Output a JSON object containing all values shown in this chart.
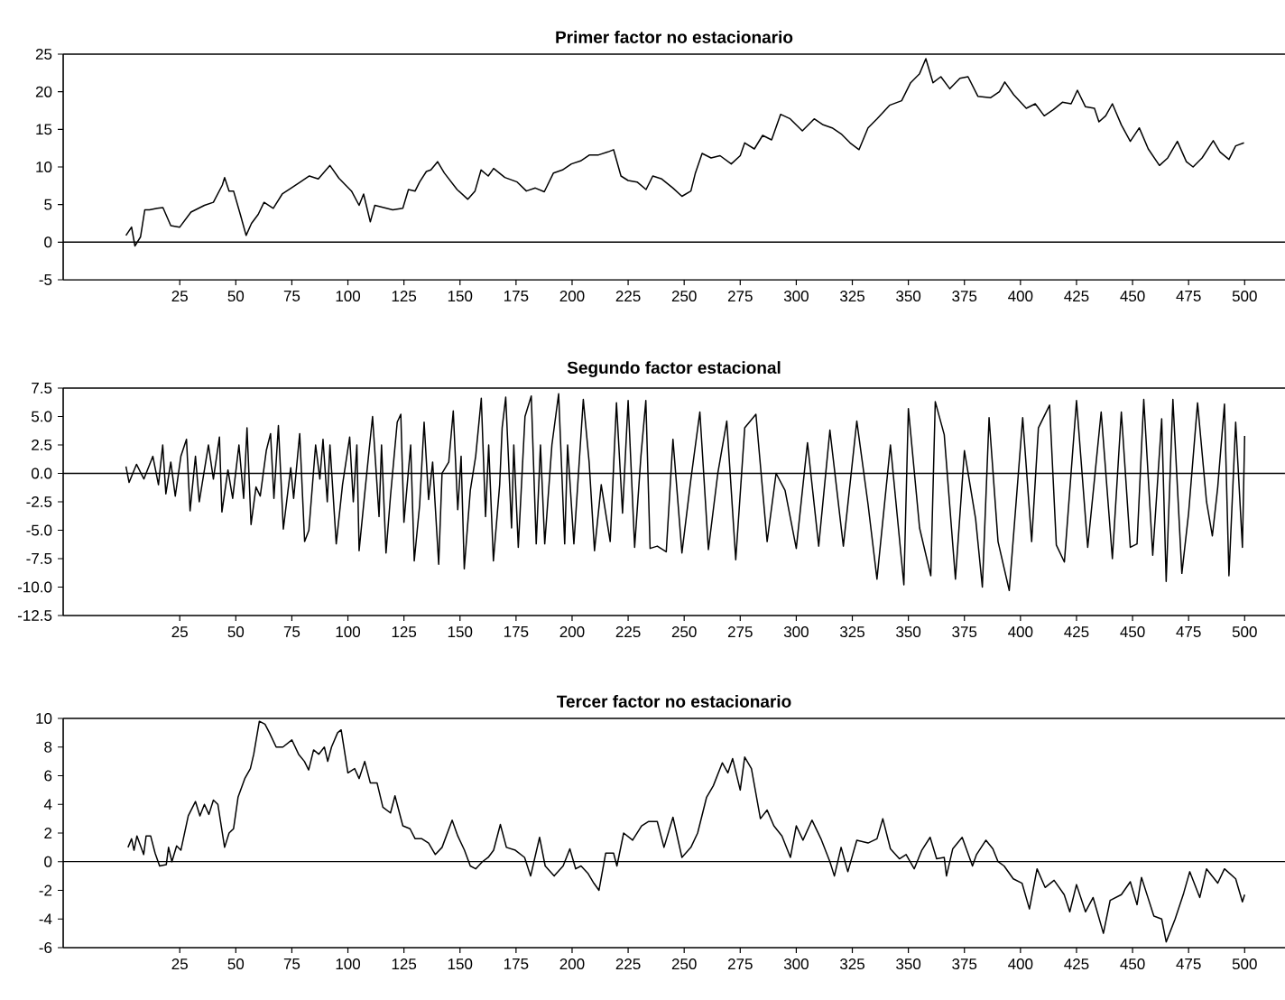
{
  "chart_data": [
    {
      "type": "line",
      "title": "Primer factor no estacionario",
      "color": "#000000",
      "xlim": [
        -27,
        518
      ],
      "xticks": [
        25,
        50,
        75,
        100,
        125,
        150,
        175,
        200,
        225,
        250,
        275,
        300,
        325,
        350,
        375,
        400,
        425,
        450,
        475,
        500
      ],
      "ylim": [
        -5,
        25
      ],
      "yticks": [
        -5,
        0,
        5,
        10,
        15,
        20,
        25
      ],
      "ref_lines": [
        {
          "axis": "y",
          "value": 0
        }
      ],
      "x": [
        1,
        3.5,
        5,
        7.5,
        9.4,
        11.5,
        15,
        17.5,
        21,
        25,
        30,
        36,
        40,
        44,
        45,
        47,
        49,
        52,
        54.6,
        57,
        60,
        62.6,
        66.7,
        70.7,
        74.7,
        78.8,
        82.8,
        86.8,
        92,
        96,
        101.6,
        105,
        107,
        110,
        112,
        116,
        120,
        124.5,
        127,
        130,
        132,
        135,
        137,
        140,
        143,
        148.7,
        153.5,
        156.7,
        159.4,
        162.6,
        165,
        170,
        175.5,
        179.6,
        183.6,
        187.6,
        191.7,
        195.7,
        199.7,
        203.8,
        207.8,
        211.8,
        216,
        218.5,
        221.8,
        225,
        229,
        233,
        236,
        240,
        245,
        249,
        253,
        255,
        258,
        262,
        266,
        271,
        275,
        277,
        281.3,
        285,
        289,
        293,
        297.3,
        302.7,
        308,
        312,
        316,
        320,
        324,
        328,
        332,
        336,
        341.6,
        347,
        351,
        355,
        357.8,
        361,
        364.5,
        368.5,
        373,
        376.6,
        381,
        386.6,
        390.6,
        393,
        397,
        402.6,
        406.6,
        410.6,
        414.6,
        418.7,
        422.6,
        425.4,
        429,
        433,
        435,
        438,
        441,
        445,
        449,
        453,
        457,
        462,
        465.7,
        470,
        474,
        477,
        481,
        486,
        489,
        493,
        496,
        499.7
      ],
      "values": [
        0.9,
        2,
        -0.5,
        0.7,
        4.3,
        4.3,
        4.5,
        4.6,
        2.2,
        2,
        4,
        4.9,
        5.3,
        7.6,
        8.6,
        6.8,
        6.8,
        3.7,
        0.9,
        2.5,
        3.7,
        5.3,
        4.5,
        6.4,
        7.2,
        8,
        8.8,
        8.4,
        10.2,
        8.5,
        6.8,
        4.9,
        6.4,
        2.7,
        4.9,
        4.6,
        4.3,
        4.5,
        7,
        6.8,
        8,
        9.4,
        9.6,
        10.7,
        9.2,
        7,
        5.7,
        6.8,
        9.6,
        8.8,
        9.8,
        8.6,
        8,
        6.8,
        7.2,
        6.7,
        9.2,
        9.6,
        10.4,
        10.8,
        11.6,
        11.6,
        12,
        12.3,
        8.8,
        8.2,
        8,
        7,
        8.8,
        8.4,
        7.2,
        6.1,
        6.8,
        9.2,
        11.8,
        11.2,
        11.5,
        10.4,
        11.5,
        13.2,
        12.4,
        14.2,
        13.6,
        17,
        16.4,
        14.8,
        16.4,
        15.6,
        15.2,
        14.4,
        13.2,
        12.3,
        15.2,
        16.4,
        18.2,
        18.8,
        21.2,
        22.4,
        24.4,
        21.2,
        22,
        20.4,
        21.8,
        22,
        19.4,
        19.2,
        20,
        21.3,
        19.6,
        17.8,
        18.4,
        16.8,
        17.6,
        18.6,
        18.4,
        20.2,
        18,
        17.8,
        16,
        16.8,
        18.4,
        15.6,
        13.4,
        15.2,
        12.4,
        10.2,
        11.2,
        13.4,
        10.7,
        10,
        11.2,
        13.5,
        12,
        11,
        12.8,
        13.2
      ]
    },
    {
      "type": "line",
      "title": "Segundo factor estacional",
      "color": "#000000",
      "xlim": [
        -27,
        518
      ],
      "xticks": [
        25,
        50,
        75,
        100,
        125,
        150,
        175,
        200,
        225,
        250,
        275,
        300,
        325,
        350,
        375,
        400,
        425,
        450,
        475,
        500
      ],
      "ylim": [
        -12.5,
        7.5
      ],
      "yticks": [
        {
          "value": -12.5,
          "label": "-12.5"
        },
        {
          "value": -10,
          "label": "-10.0"
        },
        {
          "value": -7.5,
          "label": "-7.5"
        },
        {
          "value": -5,
          "label": "-5.0"
        },
        {
          "value": -2.5,
          "label": "-2.5"
        },
        {
          "value": 0,
          "label": "0.0"
        },
        {
          "value": 2.5,
          "label": "2.5"
        },
        {
          "value": 5,
          "label": "5.0"
        },
        {
          "value": 7.5,
          "label": "7.5"
        }
      ],
      "ref_lines": [
        {
          "axis": "y",
          "value": 0
        }
      ],
      "x": [
        1,
        2.4,
        5.7,
        9,
        13,
        15.5,
        17.4,
        18.8,
        21,
        23,
        25.5,
        28,
        29.6,
        32,
        33.7,
        37.8,
        40,
        42.7,
        43.8,
        46.5,
        48.6,
        51.4,
        53.5,
        55,
        56.8,
        59,
        60.9,
        63.6,
        65.5,
        67,
        69,
        71.2,
        74.5,
        75.8,
        78.5,
        80.7,
        82.6,
        85.6,
        87.5,
        88.9,
        90.8,
        92,
        94.8,
        97.6,
        100.8,
        102.4,
        104,
        105,
        108,
        111,
        113.9,
        115,
        117,
        119,
        122,
        123.6,
        125,
        128,
        129.6,
        132,
        134,
        136,
        137.8,
        140.5,
        142,
        145,
        147,
        149,
        150.5,
        151.9,
        154.6,
        157,
        159.5,
        161.4,
        162.8,
        164.9,
        167.7,
        168.8,
        170.4,
        173,
        174,
        176,
        179,
        181.8,
        184,
        185.9,
        187.8,
        191,
        194,
        196.7,
        198,
        200.8,
        205,
        207.6,
        210,
        213,
        217,
        219.8,
        222.5,
        225,
        227.9,
        230.7,
        232.9,
        234.8,
        238,
        242,
        245,
        249,
        253,
        257,
        260.8,
        265,
        269,
        273,
        277,
        282,
        287,
        291,
        295,
        300,
        305,
        310,
        315,
        321,
        327,
        332,
        336,
        342,
        348,
        350,
        355,
        360,
        362,
        366,
        371,
        375,
        380,
        383,
        386,
        390,
        395,
        401,
        405,
        408,
        413,
        416,
        419.6,
        425,
        430,
        436,
        441,
        445,
        449,
        452,
        455,
        459,
        463,
        465,
        468,
        472,
        475,
        479,
        483,
        485.6,
        488,
        491,
        493,
        496,
        499,
        500
      ],
      "values": [
        0.6,
        -0.8,
        0.8,
        -0.5,
        1.5,
        -1,
        2.5,
        -1.8,
        1,
        -2,
        1.5,
        3,
        -3.3,
        1.5,
        -2.5,
        2.5,
        -0.5,
        3.2,
        -3.4,
        0.3,
        -2.2,
        2.5,
        -2.2,
        4,
        -4.5,
        -1.2,
        -2,
        2,
        3.5,
        -2.2,
        4.2,
        -4.9,
        0.5,
        -2.2,
        3.5,
        -6,
        -5,
        2.5,
        -0.5,
        3,
        -2.5,
        2.5,
        -6.2,
        -1,
        3.2,
        -2.5,
        2.5,
        -6.8,
        -0.8,
        5,
        -3.8,
        2.5,
        -7,
        -2,
        4.5,
        5.2,
        -4.3,
        2.5,
        -7.7,
        -2.8,
        4.5,
        -2.3,
        1,
        -8,
        0,
        1,
        5.5,
        -3.2,
        1.5,
        -8.4,
        -1.5,
        1.5,
        6.6,
        -3.8,
        2.5,
        -7.7,
        -1,
        4,
        6.7,
        -4.8,
        2.5,
        -6.5,
        5,
        6.8,
        -6.2,
        2.5,
        -6.2,
        2.5,
        7,
        -6.2,
        2.5,
        -6.2,
        6.5,
        1,
        -6.8,
        -1,
        -6,
        6.2,
        -3.5,
        6.4,
        -6.5,
        1.5,
        6.4,
        -6.6,
        -6.4,
        -6.9,
        3,
        -7,
        -0.5,
        5.4,
        -6.7,
        0,
        4.6,
        -7.6,
        4,
        5.2,
        -6,
        0,
        -1.5,
        -6.6,
        2.7,
        -6.4,
        3.8,
        -6.4,
        4.6,
        -2.7,
        -9.3,
        2.5,
        -9.8,
        5.7,
        -4.8,
        -9,
        6.3,
        3.4,
        -9.3,
        2,
        -4,
        -10,
        4.9,
        -6,
        -10.3,
        4.9,
        -6,
        4,
        6,
        -6.3,
        -7.8,
        6.4,
        -6.5,
        5.4,
        -7.5,
        5.4,
        -6.5,
        -6.2,
        6.5,
        -7.2,
        4.8,
        -9.5,
        6.5,
        -8.8,
        -3.5,
        6.2,
        -2.5,
        -5.5,
        -1.2,
        6.1,
        -9,
        4.5,
        -6.5,
        3.3
      ]
    },
    {
      "type": "line",
      "title": "Tercer factor no estacionario",
      "color": "#000000",
      "xlim": [
        -27,
        518
      ],
      "xticks": [
        25,
        50,
        75,
        100,
        125,
        150,
        175,
        200,
        225,
        250,
        275,
        300,
        325,
        350,
        375,
        400,
        425,
        450,
        475,
        500
      ],
      "ylim": [
        -6,
        10
      ],
      "yticks": [
        -6,
        -4,
        -2,
        0,
        2,
        4,
        6,
        8,
        10
      ],
      "ref_lines": [
        {
          "axis": "y",
          "value": 0
        }
      ],
      "x": [
        1.9,
        3.5,
        4.6,
        5.9,
        8.9,
        10,
        12,
        14,
        16,
        19,
        20,
        21.5,
        23.6,
        25.5,
        28.8,
        32,
        34,
        36,
        38,
        40,
        42,
        45,
        47,
        49,
        51,
        54,
        56.5,
        58,
        60.5,
        63,
        65,
        68,
        71,
        75,
        78,
        80.6,
        82.5,
        84.7,
        87,
        89.5,
        91,
        92.7,
        95.4,
        97,
        100,
        103,
        105,
        107.5,
        110,
        113,
        115.6,
        119,
        121,
        124.5,
        127.7,
        130,
        133,
        136,
        139,
        142,
        146.5,
        149,
        152,
        154.6,
        157,
        160,
        162.6,
        165,
        168,
        170.7,
        174.7,
        178.8,
        181.5,
        185.5,
        188,
        192,
        196,
        199,
        201.6,
        204,
        207,
        209.7,
        212,
        215,
        218.5,
        220,
        223,
        227,
        231,
        234,
        238,
        241,
        245,
        249,
        253,
        256,
        260,
        263,
        267,
        269.5,
        271.6,
        275,
        277,
        280,
        284,
        287,
        290,
        293.6,
        297.4,
        300,
        303,
        307,
        311,
        315,
        317,
        320,
        323,
        327,
        332,
        336,
        338.6,
        342,
        346,
        349,
        352.6,
        356,
        359.7,
        362.6,
        366,
        367,
        369.8,
        374,
        378.6,
        380.4,
        384.6,
        387.7,
        390,
        392.7,
        396.8,
        400.7,
        404,
        407.4,
        411,
        415,
        419.5,
        422,
        425,
        429,
        432.4,
        437,
        440,
        445,
        449,
        452,
        454,
        459.5,
        463,
        465,
        469,
        472.8,
        475.5,
        480,
        483,
        488,
        491,
        496,
        499,
        500
      ],
      "values": [
        1,
        1.6,
        0.8,
        1.8,
        0.5,
        1.8,
        1.8,
        0.6,
        -0.3,
        -0.2,
        1,
        0,
        1.1,
        0.8,
        3.2,
        4.2,
        3.2,
        4,
        3.3,
        4.3,
        4,
        1,
        2,
        2.3,
        4.5,
        5.8,
        6.5,
        7.5,
        9.8,
        9.6,
        9,
        8,
        8,
        8.5,
        7.5,
        7,
        6.4,
        7.8,
        7.5,
        8,
        7,
        8,
        9,
        9.2,
        6.2,
        6.5,
        5.8,
        7,
        5.5,
        5.5,
        3.8,
        3.4,
        4.6,
        2.5,
        2.3,
        1.6,
        1.6,
        1.3,
        0.5,
        1,
        2.9,
        1.8,
        0.8,
        -0.3,
        -0.5,
        0,
        0.3,
        0.8,
        2.6,
        1,
        0.8,
        0.3,
        -1,
        1.7,
        -0.3,
        -1,
        -0.3,
        0.9,
        -0.5,
        -0.3,
        -0.8,
        -1.5,
        -2,
        0.6,
        0.6,
        -0.3,
        2,
        1.5,
        2.5,
        2.8,
        2.8,
        1,
        3.1,
        0.3,
        1,
        2,
        4.5,
        5.3,
        6.9,
        6.2,
        7.2,
        5,
        7.3,
        6.5,
        3,
        3.6,
        2.5,
        1.8,
        0.3,
        2.5,
        1.5,
        2.9,
        1.6,
        0,
        -1,
        1,
        -0.7,
        1.5,
        1.3,
        1.6,
        3,
        0.9,
        0.2,
        0.5,
        -0.5,
        0.8,
        1.7,
        0.2,
        0.3,
        -1,
        0.9,
        1.7,
        -0.3,
        0.5,
        1.5,
        0.9,
        0,
        -0.3,
        -1.2,
        -1.5,
        -3.3,
        -0.5,
        -1.8,
        -1.3,
        -2.3,
        -3.5,
        -1.6,
        -3.5,
        -2.5,
        -5,
        -2.7,
        -2.3,
        -1.4,
        -3,
        -1.1,
        -3.8,
        -4,
        -5.6,
        -4,
        -2.2,
        -0.7,
        -2.5,
        -0.5,
        -1.5,
        -0.5,
        -1.2,
        -2.8,
        -2.3
      ]
    }
  ]
}
